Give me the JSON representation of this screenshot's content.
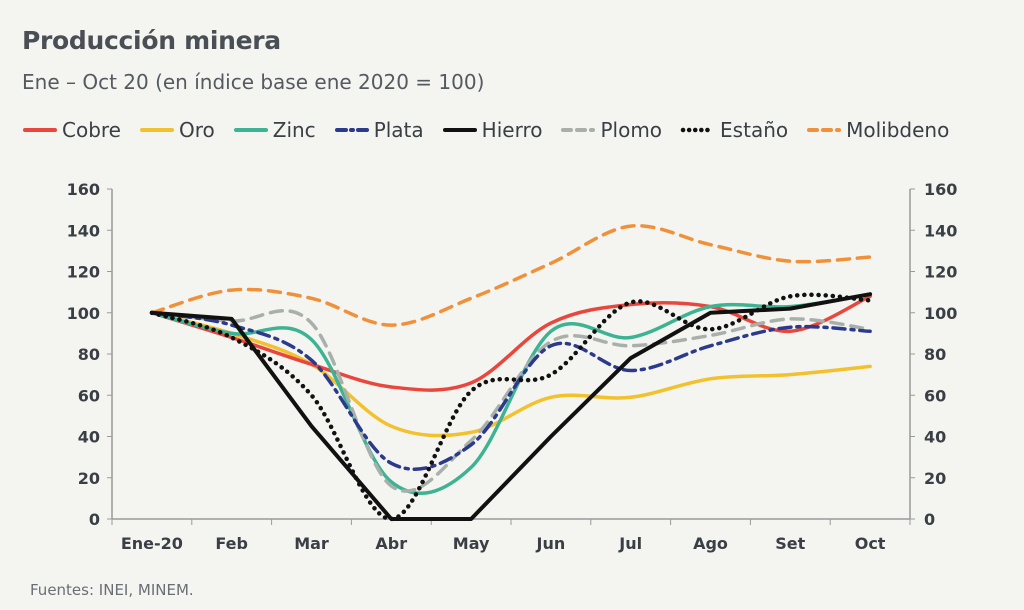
{
  "header": {
    "title": "Producción minera",
    "subtitle": "Ene – Oct 20 (en índice base ene 2020 = 100)"
  },
  "footer": {
    "source": "Fuentes: INEI, MINEM."
  },
  "chart_data": {
    "type": "line",
    "categories": [
      "Ene-20",
      "Feb",
      "Mar",
      "Abr",
      "May",
      "Jun",
      "Jul",
      "Ago",
      "Set",
      "Oct"
    ],
    "ylim": [
      0,
      160
    ],
    "yticks": [
      0,
      20,
      40,
      60,
      80,
      100,
      120,
      140,
      160
    ],
    "secondary_axis": true,
    "grid": false,
    "legend_position": "top",
    "series": [
      {
        "name": "Cobre",
        "color": "#e8473e",
        "style": "solid",
        "smooth": true,
        "values": [
          100,
          88,
          75,
          64,
          66,
          95,
          104,
          103,
          91,
          108
        ]
      },
      {
        "name": "Oro",
        "color": "#f2c12e",
        "style": "solid",
        "smooth": true,
        "values": [
          100,
          90,
          75,
          45,
          42,
          59,
          59,
          68,
          70,
          74
        ]
      },
      {
        "name": "Zinc",
        "color": "#3db393",
        "style": "solid",
        "smooth": true,
        "values": [
          100,
          90,
          87,
          18,
          25,
          91,
          88,
          103,
          103,
          109
        ]
      },
      {
        "name": "Plata",
        "color": "#2c3a8c",
        "style": "dashdot",
        "smooth": true,
        "values": [
          100,
          94,
          77,
          27,
          36,
          84,
          72,
          84,
          93,
          91
        ]
      },
      {
        "name": "Hierro",
        "color": "#111111",
        "style": "solid",
        "smooth": false,
        "values": [
          100,
          97,
          45,
          0,
          0,
          40,
          78,
          100,
          102,
          109
        ]
      },
      {
        "name": "Plomo",
        "color": "#a9b0ac",
        "style": "dashed",
        "smooth": true,
        "values": [
          100,
          96,
          95,
          16,
          38,
          86,
          84,
          89,
          97,
          92
        ]
      },
      {
        "name": "Estaño",
        "color": "#111111",
        "style": "dotted",
        "smooth": true,
        "values": [
          100,
          88,
          60,
          0,
          62,
          70,
          105,
          92,
          108,
          106
        ]
      },
      {
        "name": "Molibdeno",
        "color": "#f0913a",
        "style": "dashed",
        "smooth": true,
        "values": [
          100,
          111,
          107,
          94,
          107,
          124,
          142,
          133,
          125,
          127
        ]
      }
    ]
  }
}
